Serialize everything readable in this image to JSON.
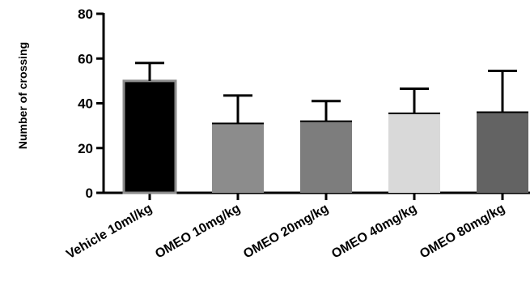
{
  "chart_data": {
    "type": "bar",
    "title": "",
    "xlabel": "",
    "ylabel": "Number of crossing",
    "ylim": [
      0,
      80
    ],
    "yticks": [
      0,
      20,
      40,
      60,
      80
    ],
    "grid": false,
    "legend": "none",
    "error_bars": "upper",
    "categories": [
      "Vehicle 10ml/kg",
      "OMEO 10mg/kg",
      "OMEO 20mg/kg",
      "OMEO 40mg/kg",
      "OMEO 80mg/kg"
    ],
    "values": [
      50,
      31,
      32,
      35.5,
      36
    ],
    "errors": [
      8,
      12.5,
      9,
      11,
      18.5
    ],
    "colors": [
      "#000000",
      "#8c8c8c",
      "#7d7d7d",
      "#d9d9d9",
      "#636363"
    ]
  }
}
